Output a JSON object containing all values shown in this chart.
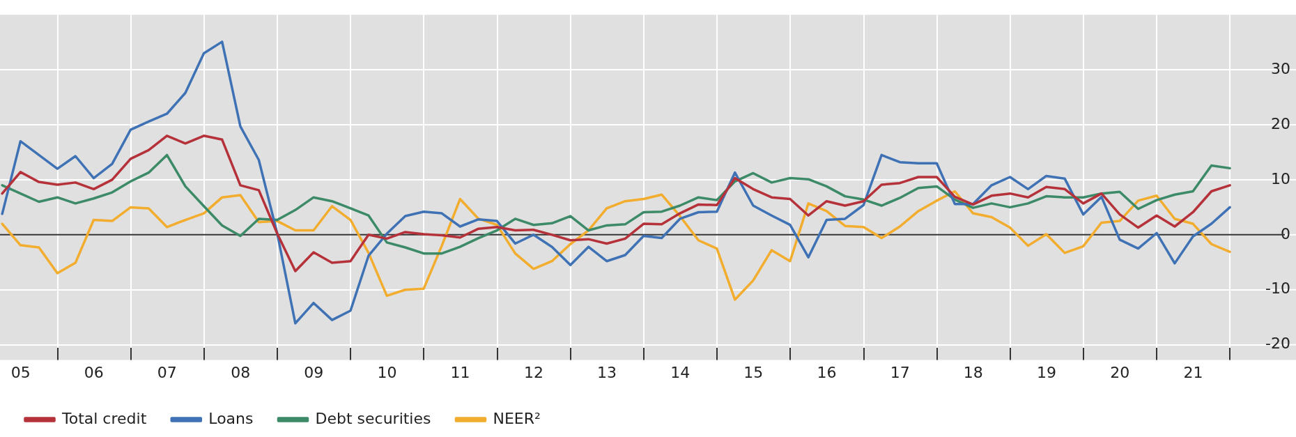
{
  "chart_data": {
    "type": "line",
    "x": [
      "2005-03-31",
      "2005-06-30",
      "2005-09-30",
      "2005-12-31",
      "2006-03-31",
      "2006-06-30",
      "2006-09-30",
      "2006-12-31",
      "2007-03-31",
      "2007-06-30",
      "2007-09-30",
      "2007-12-31",
      "2008-03-31",
      "2008-06-30",
      "2008-09-30",
      "2008-12-31",
      "2009-03-31",
      "2009-06-30",
      "2009-09-30",
      "2009-12-31",
      "2010-03-31",
      "2010-06-30",
      "2010-09-30",
      "2010-12-31",
      "2011-03-31",
      "2011-06-30",
      "2011-09-30",
      "2011-12-31",
      "2012-03-31",
      "2012-06-30",
      "2012-09-30",
      "2012-12-31",
      "2013-03-31",
      "2013-06-30",
      "2013-09-30",
      "2013-12-31",
      "2014-03-31",
      "2014-06-30",
      "2014-09-30",
      "2014-12-31",
      "2015-03-31",
      "2015-06-30",
      "2015-09-30",
      "2015-12-31",
      "2016-03-31",
      "2016-06-30",
      "2016-09-30",
      "2016-12-31",
      "2017-03-31",
      "2017-06-30",
      "2017-09-30",
      "2017-12-31",
      "2018-03-31",
      "2018-06-30",
      "2018-09-30",
      "2018-12-31",
      "2019-03-31",
      "2019-06-30",
      "2019-09-30",
      "2019-12-31",
      "2020-03-31",
      "2020-06-30",
      "2020-09-30",
      "2020-12-31",
      "2021-03-31",
      "2021-06-30",
      "2021-09-30",
      "2021-12-31"
    ],
    "series": [
      {
        "name": "Total credit",
        "color": "#b5323a",
        "values": [
          7.5,
          11.4,
          9.6,
          9.1,
          9.5,
          8.3,
          10.0,
          13.8,
          15.4,
          18.0,
          16.6,
          18.0,
          17.3,
          9.0,
          8.1,
          0.2,
          -6.6,
          -3.2,
          -5.1,
          -4.8,
          0.0,
          -0.7,
          0.5,
          0.1,
          -0.1,
          -0.5,
          1.1,
          1.4,
          0.8,
          0.9,
          0.0,
          -1.0,
          -0.8,
          -1.6,
          -0.7,
          2.0,
          1.9,
          3.9,
          5.5,
          5.4,
          10.3,
          8.3,
          6.8,
          6.5,
          3.5,
          6.1,
          5.3,
          6.1,
          9.1,
          9.4,
          10.5,
          10.5,
          6.9,
          5.5,
          7.1,
          7.5,
          6.8,
          8.7,
          8.3,
          5.7,
          7.5,
          3.7,
          1.3,
          3.5,
          1.5,
          4.1,
          7.9,
          9.0
        ]
      },
      {
        "name": "Loans",
        "color": "#3f72b5",
        "values": [
          3.8,
          17.0,
          14.5,
          12.0,
          14.3,
          10.3,
          12.9,
          19.1,
          20.6,
          22.0,
          25.8,
          33.0,
          35.1,
          19.7,
          13.6,
          0.2,
          -16.1,
          -12.4,
          -15.5,
          -13.8,
          -3.8,
          0.2,
          3.4,
          4.2,
          3.9,
          1.5,
          2.8,
          2.5,
          -1.6,
          0.0,
          -2.2,
          -5.5,
          -2.2,
          -4.8,
          -3.7,
          -0.2,
          -0.6,
          2.9,
          4.1,
          4.2,
          11.3,
          5.3,
          3.5,
          1.8,
          -4.1,
          2.7,
          2.9,
          5.4,
          14.5,
          13.2,
          13.0,
          13.0,
          5.6,
          5.6,
          9.0,
          10.5,
          8.3,
          10.7,
          10.2,
          3.7,
          6.9,
          -0.9,
          -2.5,
          0.3,
          -5.2,
          -0.3,
          2.0,
          5.0
        ]
      },
      {
        "name": "Debt securities",
        "color": "#3c8a68",
        "values": [
          9.0,
          7.5,
          6.0,
          6.8,
          5.7,
          6.6,
          7.7,
          9.7,
          11.3,
          14.5,
          8.8,
          5.2,
          1.7,
          -0.2,
          2.9,
          2.7,
          4.5,
          6.8,
          6.1,
          4.8,
          3.5,
          -1.4,
          -2.3,
          -3.4,
          -3.4,
          -2.2,
          -0.6,
          0.8,
          2.9,
          1.8,
          2.1,
          3.4,
          0.8,
          1.7,
          1.9,
          4.1,
          4.2,
          5.3,
          6.8,
          6.3,
          9.7,
          11.2,
          9.5,
          10.3,
          10.1,
          8.8,
          7.0,
          6.4,
          5.3,
          6.7,
          8.5,
          8.8,
          6.4,
          4.9,
          5.7,
          5.0,
          5.7,
          7.0,
          6.8,
          6.8,
          7.5,
          7.8,
          4.7,
          6.3,
          7.3,
          7.9,
          12.6,
          12.1
        ]
      },
      {
        "name": "NEER²",
        "color": "#f2ad2f",
        "values": [
          2.0,
          -1.9,
          -2.3,
          -7.0,
          -5.1,
          2.7,
          2.5,
          5.0,
          4.8,
          1.4,
          2.7,
          3.9,
          6.8,
          7.2,
          2.3,
          2.5,
          0.8,
          0.8,
          5.2,
          2.7,
          -3.3,
          -11.1,
          -10.0,
          -9.8,
          -2.0,
          6.5,
          2.9,
          1.8,
          -3.4,
          -6.2,
          -4.8,
          -1.7,
          0.8,
          4.8,
          6.1,
          6.5,
          7.3,
          3.4,
          -1.0,
          -2.5,
          -11.8,
          -8.3,
          -2.8,
          -4.8,
          5.7,
          4.3,
          1.6,
          1.4,
          -0.6,
          1.5,
          4.3,
          6.2,
          7.9,
          3.9,
          3.2,
          1.3,
          -2.0,
          0.1,
          -3.3,
          -2.1,
          2.2,
          2.5,
          6.2,
          7.1,
          2.9,
          2.0,
          -1.7,
          -3.1
        ]
      }
    ],
    "xlim": [
      "2005-03-20",
      "2022-10-01"
    ],
    "xticks": [
      {
        "value": "2005-07-01",
        "label": "05"
      },
      {
        "value": "2006-01-01",
        "label": null
      },
      {
        "value": "2006-07-01",
        "label": "06"
      },
      {
        "value": "2007-01-01",
        "label": null
      },
      {
        "value": "2007-07-01",
        "label": "07"
      },
      {
        "value": "2008-01-01",
        "label": null
      },
      {
        "value": "2008-07-01",
        "label": "08"
      },
      {
        "value": "2009-01-01",
        "label": null
      },
      {
        "value": "2009-07-01",
        "label": "09"
      },
      {
        "value": "2010-01-01",
        "label": null
      },
      {
        "value": "2010-07-01",
        "label": "10"
      },
      {
        "value": "2011-01-01",
        "label": null
      },
      {
        "value": "2011-07-01",
        "label": "11"
      },
      {
        "value": "2012-01-01",
        "label": null
      },
      {
        "value": "2012-07-01",
        "label": "12"
      },
      {
        "value": "2013-01-01",
        "label": null
      },
      {
        "value": "2013-07-01",
        "label": "13"
      },
      {
        "value": "2014-01-01",
        "label": null
      },
      {
        "value": "2014-07-01",
        "label": "14"
      },
      {
        "value": "2015-01-01",
        "label": null
      },
      {
        "value": "2015-07-01",
        "label": "15"
      },
      {
        "value": "2016-01-01",
        "label": null
      },
      {
        "value": "2016-07-01",
        "label": "16"
      },
      {
        "value": "2017-01-01",
        "label": null
      },
      {
        "value": "2017-07-01",
        "label": "17"
      },
      {
        "value": "2018-01-01",
        "label": null
      },
      {
        "value": "2018-07-01",
        "label": "18"
      },
      {
        "value": "2019-01-01",
        "label": null
      },
      {
        "value": "2019-07-01",
        "label": "19"
      },
      {
        "value": "2020-01-01",
        "label": null
      },
      {
        "value": "2020-07-01",
        "label": "20"
      },
      {
        "value": "2021-01-01",
        "label": null
      },
      {
        "value": "2021-07-01",
        "label": "21"
      },
      {
        "value": "2022-01-01",
        "label": null
      }
    ],
    "ylim": [
      -20.5,
      40
    ],
    "yticks": [
      -20,
      -10,
      0,
      10,
      20,
      30
    ],
    "ref_lines": [
      {
        "axis": "y",
        "value": 0,
        "color": "#333333"
      }
    ],
    "grid": true,
    "legend": "bottom left"
  }
}
